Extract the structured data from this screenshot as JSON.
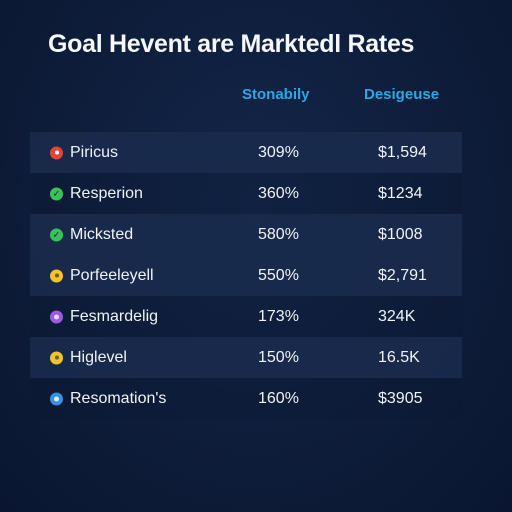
{
  "title": "Goal Hevent are Marktedl Rates",
  "columns": {
    "col1": "Stonabily",
    "col2": "Desigeuse"
  },
  "colors": {
    "background": "#0e1d3a",
    "accent": "#2aa8e6",
    "row_shaded": "#1a2c4e"
  },
  "rows": [
    {
      "icon": "red-circle-icon",
      "icon_color": "#e0453a",
      "name": "Piricus",
      "rate": "309%",
      "value": "$1,594"
    },
    {
      "icon": "green-check-icon",
      "icon_color": "#3cc15a",
      "name": "Resperion",
      "rate": "360%",
      "value": "$1234"
    },
    {
      "icon": "green-check-icon",
      "icon_color": "#3cc15a",
      "name": "Micksted",
      "rate": "580%",
      "value": "$1008"
    },
    {
      "icon": "yellow-circle-icon",
      "icon_color": "#f2c230",
      "name": "Porfeeleyell",
      "rate": "550%",
      "value": "$2,791"
    },
    {
      "icon": "purple-circle-icon",
      "icon_color": "#9b5ce0",
      "name": "Fesmardelig",
      "rate": "173%",
      "value": "324K"
    },
    {
      "icon": "yellow-circle-icon",
      "icon_color": "#f2c230",
      "name": "Higlevel",
      "rate": "150%",
      "value": "16.5K"
    },
    {
      "icon": "blue-circle-icon",
      "icon_color": "#3a8fe0",
      "name": "Resomation's",
      "rate": "160%",
      "value": "$3905"
    }
  ]
}
